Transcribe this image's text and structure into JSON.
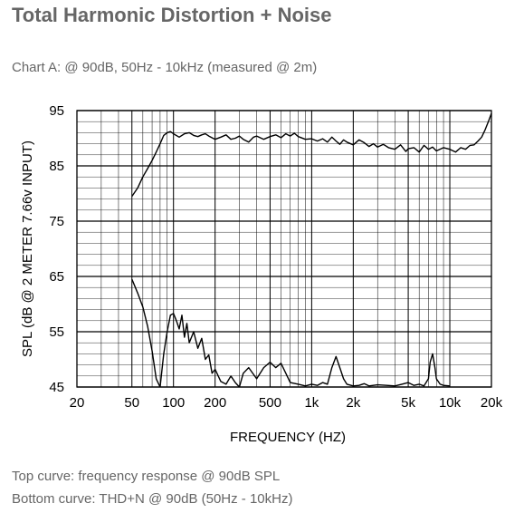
{
  "page": {
    "title": "Total Harmonic Distortion + Noise",
    "chart_caption": "Chart A: @ 90dB, 50Hz - 10kHz (measured @ 2m)",
    "note_top": "Top curve: frequency response @ 90dB SPL",
    "note_bottom": "Bottom curve: THD+N @ 90dB (50Hz - 10kHz)"
  },
  "chart_data": {
    "type": "line",
    "xlabel": "FREQUENCY  (HZ)",
    "ylabel": "SPL (dB @ 2 METER 7.66v  INPUT)",
    "xscale": "log",
    "xlim": [
      20,
      20000
    ],
    "ylim": [
      45,
      95
    ],
    "grid": true,
    "x_ticks": [
      20,
      50,
      100,
      200,
      500,
      1000,
      2000,
      5000,
      10000,
      20000
    ],
    "x_tick_labels": [
      "20",
      "50",
      "100",
      "200",
      "500",
      "1k",
      "2k",
      "5k",
      "10k",
      "20k"
    ],
    "y_ticks": [
      45,
      55,
      65,
      75,
      85,
      95
    ],
    "y_tick_labels": [
      "45",
      "55",
      "65",
      "75",
      "85",
      "95"
    ],
    "line_color": "#000000",
    "series": [
      {
        "x": [
          50,
          55,
          60,
          65,
          70,
          75,
          80,
          85,
          90,
          95,
          100,
          110,
          120,
          130,
          140,
          150,
          160,
          170,
          180,
          200,
          220,
          240,
          260,
          280,
          300,
          320,
          350,
          380,
          400,
          450,
          500,
          550,
          600,
          650,
          700,
          750,
          800,
          900,
          1000,
          1100,
          1200,
          1300,
          1400,
          1500,
          1600,
          1700,
          1800,
          2000,
          2200,
          2400,
          2600,
          2800,
          3000,
          3300,
          3600,
          4000,
          4400,
          4800,
          5000,
          5500,
          6000,
          6500,
          7000,
          7500,
          8000,
          9000,
          10000,
          11000,
          12000,
          13000,
          14000,
          15000,
          16000,
          17000,
          18000,
          19000,
          20000
        ],
        "values": [
          79.5,
          81,
          83,
          84.5,
          86,
          87.5,
          89,
          90.5,
          91,
          91.2,
          90.8,
          90.2,
          90.8,
          91,
          90.5,
          90.3,
          90.6,
          90.8,
          90.4,
          89.8,
          90.2,
          90.6,
          89.8,
          90,
          90.4,
          89.8,
          89.3,
          90.2,
          90.4,
          89.8,
          90.3,
          90.6,
          90.1,
          90.8,
          90.4,
          90.9,
          90.3,
          89.8,
          89.9,
          89.5,
          89.9,
          89.3,
          90.2,
          89.5,
          88.9,
          89.7,
          89.3,
          88.8,
          89.7,
          89.2,
          88.5,
          89.0,
          88.4,
          88.9,
          88.3,
          88.0,
          88.8,
          87.6,
          88.1,
          88.3,
          87.5,
          88.7,
          88.0,
          88.4,
          87.7,
          88.3,
          88.0,
          87.5,
          88.3,
          88.0,
          88.7,
          88.8,
          89.5,
          90.2,
          91.5,
          93.0,
          94.5
        ]
      },
      {
        "x": [
          50,
          55,
          60,
          65,
          70,
          75,
          80,
          85,
          90,
          95,
          100,
          105,
          110,
          115,
          120,
          125,
          130,
          140,
          150,
          160,
          170,
          180,
          190,
          200,
          220,
          240,
          260,
          280,
          300,
          320,
          350,
          400,
          450,
          500,
          550,
          600,
          650,
          700,
          800,
          900,
          1000,
          1100,
          1200,
          1300,
          1400,
          1500,
          1600,
          1700,
          1800,
          2000,
          2200,
          2400,
          2600,
          3000,
          3500,
          4000,
          4500,
          5000,
          5500,
          6000,
          6500,
          7000,
          7200,
          7500,
          7800,
          8000,
          8500,
          9000,
          10000
        ],
        "values": [
          64.5,
          62,
          59.5,
          56,
          51.5,
          46.5,
          45,
          51,
          55,
          58,
          58.3,
          57,
          55.5,
          58,
          54,
          56.5,
          53,
          55,
          52,
          53.8,
          50,
          50.8,
          47.5,
          48.2,
          46,
          45.5,
          47,
          45.8,
          45,
          47.5,
          48.5,
          46.5,
          48.5,
          49.5,
          48.5,
          49.3,
          47.5,
          45.8,
          45.5,
          45.2,
          45.5,
          45.3,
          45.8,
          45.5,
          48.5,
          50.5,
          48.5,
          46.5,
          45.5,
          45.2,
          45.3,
          45.6,
          45.2,
          45.4,
          45.3,
          45.2,
          45.5,
          45.8,
          45.3,
          45.5,
          45.2,
          46.5,
          49.5,
          51,
          48.5,
          46.5,
          45.5,
          45.3,
          45.2
        ]
      }
    ]
  }
}
